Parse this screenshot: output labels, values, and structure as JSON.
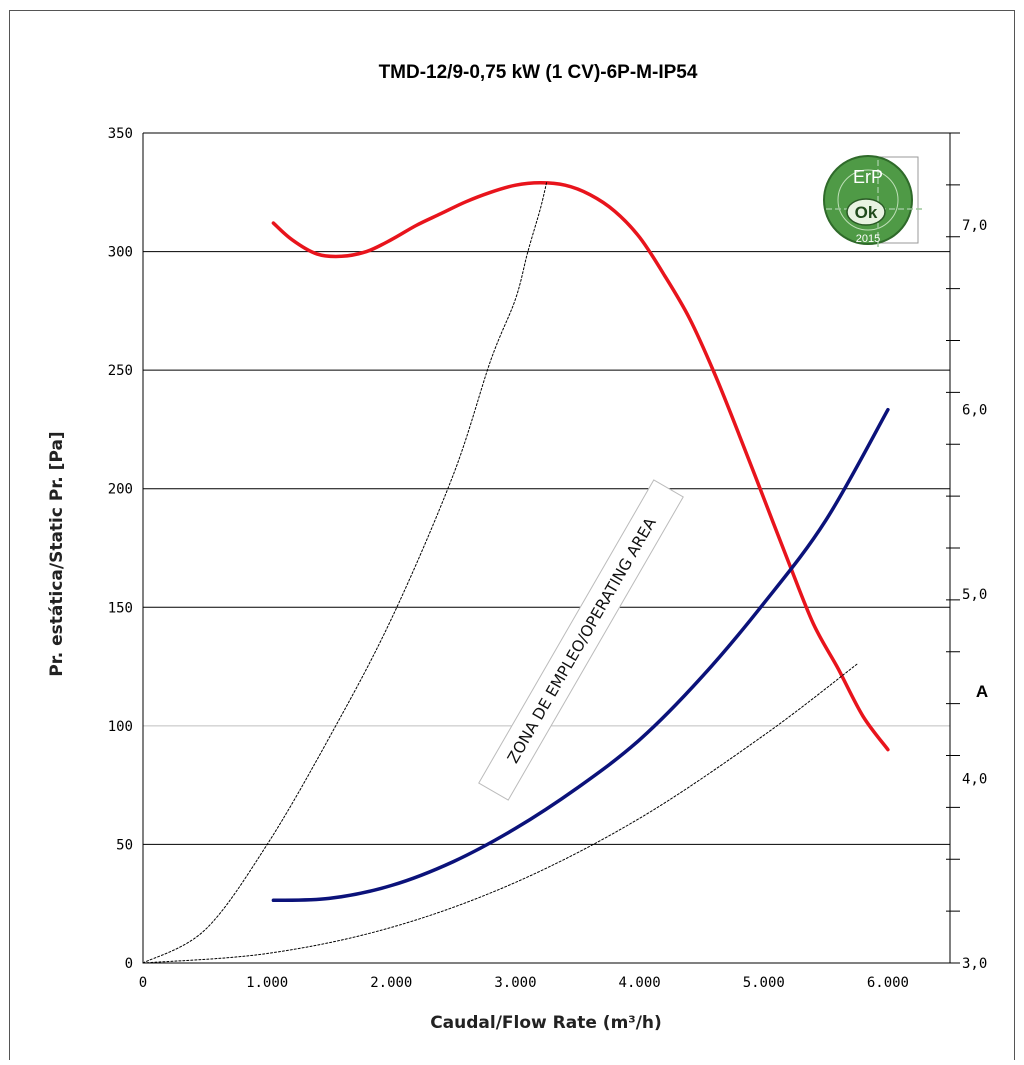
{
  "chart_data": {
    "type": "line",
    "title": "TMD-12/9-0,75 kW (1 CV)-6P-M-IP54",
    "xlabel": "Caudal/Flow Rate (m³/h)",
    "ylabel": "Pr. estática/Static Pr. [Pa]",
    "y2label": "A",
    "xlim": [
      0,
      6500
    ],
    "ylim": [
      0,
      350
    ],
    "y2lim": [
      3.0,
      7.5
    ],
    "grid": true,
    "x_ticks": [
      0,
      1000,
      2000,
      3000,
      4000,
      5000,
      6000
    ],
    "x_tick_labels": [
      "0",
      "1.000",
      "2.000",
      "3.000",
      "4.000",
      "5.000",
      "6.000"
    ],
    "y_ticks": [
      0,
      50,
      100,
      150,
      200,
      250,
      300,
      350
    ],
    "y_tick_labels": [
      "0",
      "50",
      "100",
      "150",
      "200",
      "250",
      "300",
      "350"
    ],
    "y2_ticks": [
      3.0,
      4.0,
      5.0,
      6.0,
      7.0
    ],
    "y2_tick_labels": [
      "3,0",
      "4,0",
      "5,0",
      "6,0",
      "7,0"
    ],
    "annotations": [
      "ZONA DE EMPLEO/OPERATING AREA"
    ],
    "badge": {
      "top": "ErP",
      "middle": "Ok",
      "bottom": "2015"
    },
    "series": [
      {
        "axis": "left",
        "color": "#e8141c",
        "x": [
          1050,
          1200,
          1400,
          1600,
          1800,
          2000,
          2200,
          2400,
          2600,
          2800,
          3000,
          3200,
          3400,
          3600,
          3800,
          4000,
          4200,
          4400,
          4600,
          4800,
          5000,
          5200,
          5400,
          5600,
          5800,
          6000
        ],
        "y": [
          312,
          305,
          299,
          298,
          300,
          305,
          311,
          316,
          321,
          325,
          328,
          329,
          328,
          324,
          317,
          306,
          290,
          272,
          249,
          223,
          196,
          169,
          143,
          124,
          104,
          90
        ]
      },
      {
        "axis": "right",
        "color": "#0b127a",
        "x": [
          1050,
          1500,
          2000,
          2500,
          3000,
          3500,
          4000,
          4500,
          5000,
          5500,
          6000
        ],
        "y": [
          3.34,
          3.35,
          3.42,
          3.55,
          3.73,
          3.95,
          4.21,
          4.55,
          4.95,
          5.4,
          6.0
        ]
      },
      {
        "axis": "left",
        "color": "#000000",
        "dashed": true,
        "x": [
          0,
          500,
          1000,
          1500,
          2000,
          2500,
          2800,
          3000,
          3100,
          3200,
          3250
        ],
        "y": [
          0,
          14,
          50,
          95,
          145,
          206,
          254,
          280,
          300,
          318,
          329
        ]
      },
      {
        "axis": "left",
        "color": "#000000",
        "dashed": true,
        "x": [
          0,
          1000,
          2000,
          3000,
          4000,
          5000,
          5750
        ],
        "y": [
          0,
          4,
          15,
          34,
          61,
          96,
          126
        ]
      }
    ]
  }
}
